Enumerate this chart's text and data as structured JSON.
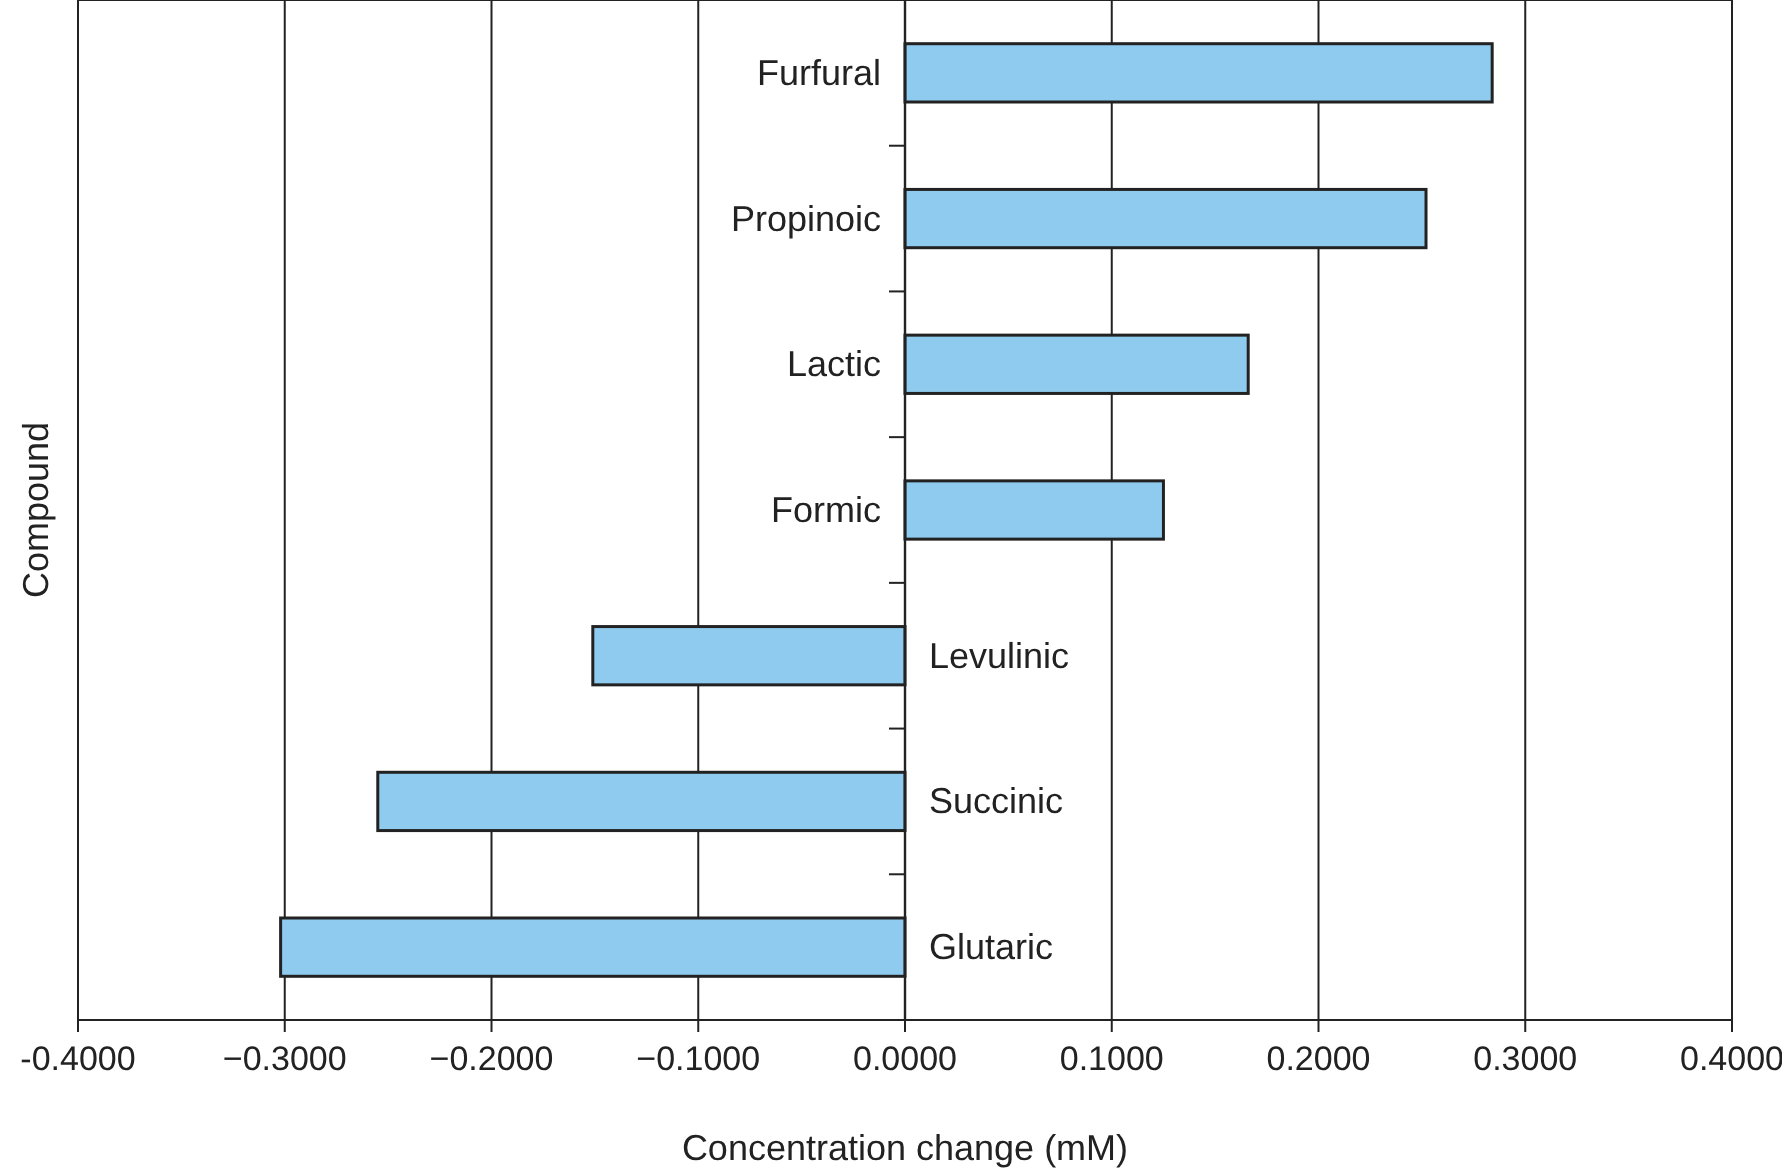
{
  "chart_data": {
    "type": "bar",
    "orientation": "horizontal",
    "xlabel": "Concentration change (mM)",
    "ylabel": "Compound",
    "categories": [
      "Furfural",
      "Propinoic",
      "Lactic",
      "Formic",
      "Levulinic",
      "Succinic",
      "Glutaric"
    ],
    "values": [
      0.284,
      0.252,
      0.166,
      0.125,
      -0.151,
      -0.255,
      -0.302
    ],
    "color": "#8fcbee",
    "xlim": [
      -0.4,
      0.4
    ],
    "xticks": [
      {
        "value": -0.4,
        "label": "-0.4000"
      },
      {
        "value": -0.3,
        "label": "−0.3000"
      },
      {
        "value": -0.2,
        "label": "−0.2000"
      },
      {
        "value": -0.1,
        "label": "−0.1000"
      },
      {
        "value": 0,
        "label": "0.0000"
      },
      {
        "value": 0.1,
        "label": "0.1000"
      },
      {
        "value": 0.2,
        "label": "0.2000"
      },
      {
        "value": 0.3,
        "label": "0.3000"
      },
      {
        "value": 0.4,
        "label": "0.4000"
      }
    ],
    "grid": "x"
  }
}
